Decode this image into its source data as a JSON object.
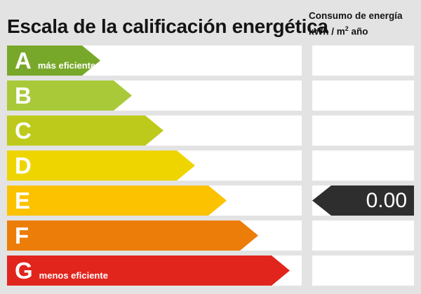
{
  "title": "Escala de la calificación energética",
  "consumption_header": {
    "line1": "Consumo de energía",
    "line2_pre": "kWh / m",
    "line2_sup": "2",
    "line2_post": " año"
  },
  "scale": {
    "rows": [
      {
        "letter": "A",
        "note": "más eficiente",
        "color": "#78a82a",
        "arrow_width": 133
      },
      {
        "letter": "B",
        "note": "",
        "color": "#a9c939",
        "arrow_width": 178
      },
      {
        "letter": "C",
        "note": "",
        "color": "#bdca1b",
        "arrow_width": 223
      },
      {
        "letter": "D",
        "note": "",
        "color": "#efd500",
        "arrow_width": 268
      },
      {
        "letter": "E",
        "note": "",
        "color": "#fcc200",
        "arrow_width": 313
      },
      {
        "letter": "F",
        "note": "",
        "color": "#ec7d08",
        "arrow_width": 358
      },
      {
        "letter": "G",
        "note": "menos eficiente",
        "color": "#e1251d",
        "arrow_width": 403
      }
    ]
  },
  "indicator": {
    "row_letter": "E",
    "value": "0.00",
    "color": "#2e2e2e"
  },
  "chart_data": {
    "type": "bar",
    "title": "Escala de la calificación energética",
    "categories": [
      "A",
      "B",
      "C",
      "D",
      "E",
      "F",
      "G"
    ],
    "bar_colors": [
      "#78a82a",
      "#a9c939",
      "#bdca1b",
      "#efd500",
      "#fcc200",
      "#ec7d08",
      "#e1251d"
    ],
    "annotations": [
      "A: más eficiente",
      "G: menos eficiente"
    ],
    "value_column_header": "Consumo de energía kWh / m² año",
    "indicator": {
      "category": "E",
      "value": 0.0,
      "unit": "kWh / m² año"
    },
    "legend_position": "none",
    "grid": false
  }
}
